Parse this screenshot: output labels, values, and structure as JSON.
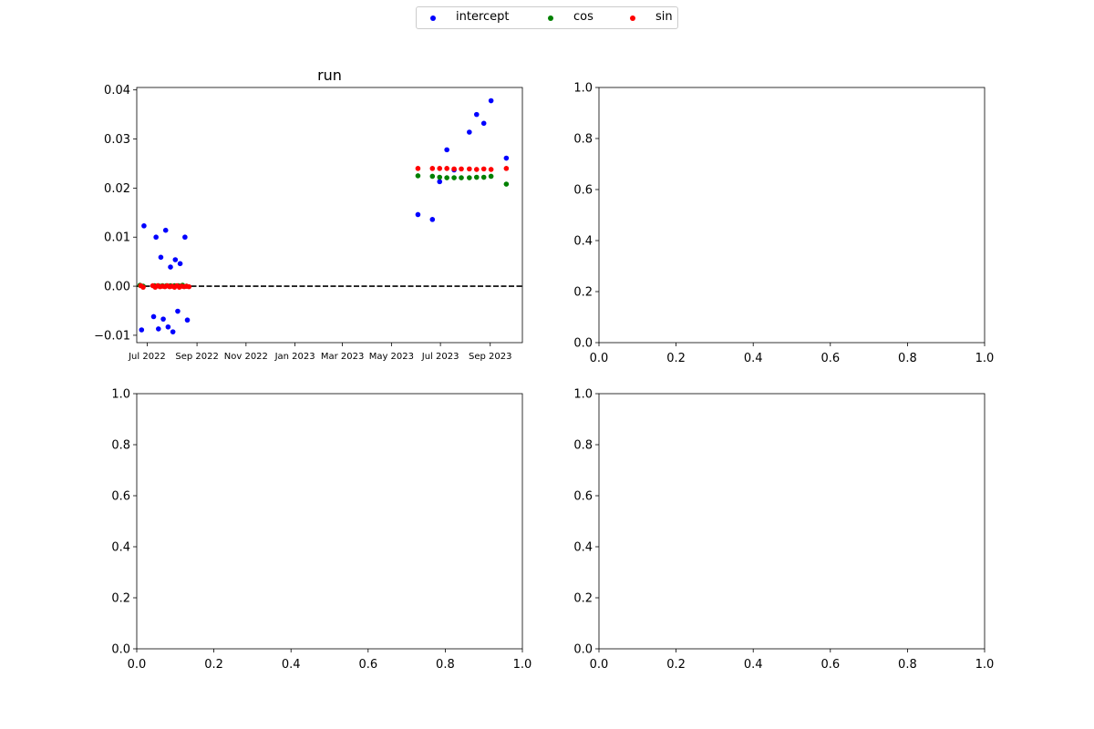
{
  "legend": {
    "items": [
      {
        "label": "intercept",
        "color": "#0000ff"
      },
      {
        "label": "cos",
        "color": "#008000"
      },
      {
        "label": "sin",
        "color": "#ff0000"
      }
    ]
  },
  "chart_data": [
    {
      "type": "scatter",
      "title": "run",
      "xlabel": "",
      "ylabel": "",
      "x_axis": "date",
      "xlim": [
        "2022-06-18",
        "2023-10-11"
      ],
      "ylim": [
        -0.0115,
        0.0405
      ],
      "x_ticks": [
        "2022-07-01",
        "2022-09-01",
        "2022-11-01",
        "2023-01-01",
        "2023-03-01",
        "2023-05-01",
        "2023-07-01",
        "2023-09-01"
      ],
      "x_tick_labels": [
        "Jul 2022",
        "Sep 2022",
        "Nov 2022",
        "Jan 2023",
        "Mar 2023",
        "May 2023",
        "Jul 2023",
        "Sep 2023"
      ],
      "y_ticks": [
        -0.01,
        0.0,
        0.01,
        0.02,
        0.03,
        0.04
      ],
      "y_tick_labels": [
        "−0.01",
        "0.00",
        "0.01",
        "0.02",
        "0.03",
        "0.04"
      ],
      "hline": {
        "y": 0.0,
        "style": "dashed",
        "color": "#000000"
      },
      "grid": false,
      "series": [
        {
          "name": "intercept",
          "color": "#0000ff",
          "points": [
            [
              "2022-06-24",
              -0.0089
            ],
            [
              "2022-06-27",
              0.0123
            ],
            [
              "2022-07-09",
              -0.0062
            ],
            [
              "2022-07-12",
              0.01
            ],
            [
              "2022-07-15",
              -0.0087
            ],
            [
              "2022-07-18",
              0.0059
            ],
            [
              "2022-07-21",
              -0.0067
            ],
            [
              "2022-07-24",
              0.0114
            ],
            [
              "2022-07-27",
              -0.0083
            ],
            [
              "2022-07-30",
              0.0039
            ],
            [
              "2022-08-02",
              -0.0093
            ],
            [
              "2022-08-05",
              0.0054
            ],
            [
              "2022-08-08",
              -0.0051
            ],
            [
              "2022-08-11",
              0.0046
            ],
            [
              "2022-08-17",
              0.01
            ],
            [
              "2022-08-20",
              -0.0069
            ],
            [
              "2023-06-03",
              0.0146
            ],
            [
              "2023-06-21",
              0.0136
            ],
            [
              "2023-06-30",
              0.0213
            ],
            [
              "2023-07-09",
              0.0278
            ],
            [
              "2023-07-18",
              0.0237
            ],
            [
              "2023-08-06",
              0.0314
            ],
            [
              "2023-08-15",
              0.035
            ],
            [
              "2023-08-24",
              0.0332
            ],
            [
              "2023-09-02",
              0.0378
            ],
            [
              "2023-09-21",
              0.0261
            ]
          ]
        },
        {
          "name": "cos",
          "color": "#008000",
          "points": [
            [
              "2022-06-22",
              0.0002
            ],
            [
              "2022-06-26",
              0.0
            ],
            [
              "2022-07-10",
              0.0001
            ],
            [
              "2022-07-15",
              0.0001
            ],
            [
              "2022-07-20",
              0.0001
            ],
            [
              "2022-07-25",
              0.0001
            ],
            [
              "2022-07-30",
              0.0001
            ],
            [
              "2022-08-04",
              0.0001
            ],
            [
              "2022-08-09",
              0.0001
            ],
            [
              "2022-08-14",
              0.0002
            ],
            [
              "2022-08-19",
              0.0
            ],
            [
              "2023-06-03",
              0.0225
            ],
            [
              "2023-06-21",
              0.0224
            ],
            [
              "2023-06-30",
              0.0222
            ],
            [
              "2023-07-09",
              0.0221
            ],
            [
              "2023-07-18",
              0.0221
            ],
            [
              "2023-07-27",
              0.0221
            ],
            [
              "2023-08-06",
              0.0221
            ],
            [
              "2023-08-15",
              0.0222
            ],
            [
              "2023-08-24",
              0.0222
            ],
            [
              "2023-09-02",
              0.0224
            ],
            [
              "2023-09-21",
              0.0208
            ]
          ]
        },
        {
          "name": "sin",
          "color": "#ff0000",
          "points": [
            [
              "2022-06-23",
              0.0001
            ],
            [
              "2022-06-26",
              -0.0002
            ],
            [
              "2022-07-08",
              0.0001
            ],
            [
              "2022-07-11",
              -0.0002
            ],
            [
              "2022-07-14",
              0.0001
            ],
            [
              "2022-07-17",
              -0.0001
            ],
            [
              "2022-07-20",
              0.0
            ],
            [
              "2022-07-23",
              -0.0001
            ],
            [
              "2022-07-26",
              0.0001
            ],
            [
              "2022-07-29",
              -0.0001
            ],
            [
              "2022-08-01",
              0.0
            ],
            [
              "2022-08-04",
              -0.0002
            ],
            [
              "2022-08-07",
              0.0001
            ],
            [
              "2022-08-10",
              -0.0002
            ],
            [
              "2022-08-13",
              0.0
            ],
            [
              "2022-08-16",
              -0.0001
            ],
            [
              "2022-08-19",
              0.0
            ],
            [
              "2022-08-22",
              -0.0001
            ],
            [
              "2023-06-03",
              0.024
            ],
            [
              "2023-06-21",
              0.024
            ],
            [
              "2023-06-30",
              0.024
            ],
            [
              "2023-07-09",
              0.024
            ],
            [
              "2023-07-18",
              0.0239
            ],
            [
              "2023-07-27",
              0.0239
            ],
            [
              "2023-08-06",
              0.0239
            ],
            [
              "2023-08-15",
              0.0238
            ],
            [
              "2023-08-24",
              0.0239
            ],
            [
              "2023-09-02",
              0.0238
            ],
            [
              "2023-09-21",
              0.024
            ]
          ]
        }
      ]
    },
    {
      "type": "scatter",
      "title": "",
      "xlim": [
        0,
        1
      ],
      "ylim": [
        0,
        1
      ],
      "x_tick_labels": [
        "0.0",
        "0.2",
        "0.4",
        "0.6",
        "0.8",
        "1.0"
      ],
      "y_tick_labels": [
        "0.0",
        "0.2",
        "0.4",
        "0.6",
        "0.8",
        "1.0"
      ],
      "series": []
    },
    {
      "type": "scatter",
      "title": "",
      "xlim": [
        0,
        1
      ],
      "ylim": [
        0,
        1
      ],
      "x_tick_labels": [
        "0.0",
        "0.2",
        "0.4",
        "0.6",
        "0.8",
        "1.0"
      ],
      "y_tick_labels": [
        "0.0",
        "0.2",
        "0.4",
        "0.6",
        "0.8",
        "1.0"
      ],
      "series": []
    },
    {
      "type": "scatter",
      "title": "",
      "xlim": [
        0,
        1
      ],
      "ylim": [
        0,
        1
      ],
      "x_tick_labels": [
        "0.0",
        "0.2",
        "0.4",
        "0.6",
        "0.8",
        "1.0"
      ],
      "y_tick_labels": [
        "0.0",
        "0.2",
        "0.4",
        "0.6",
        "0.8",
        "1.0"
      ],
      "series": []
    }
  ]
}
